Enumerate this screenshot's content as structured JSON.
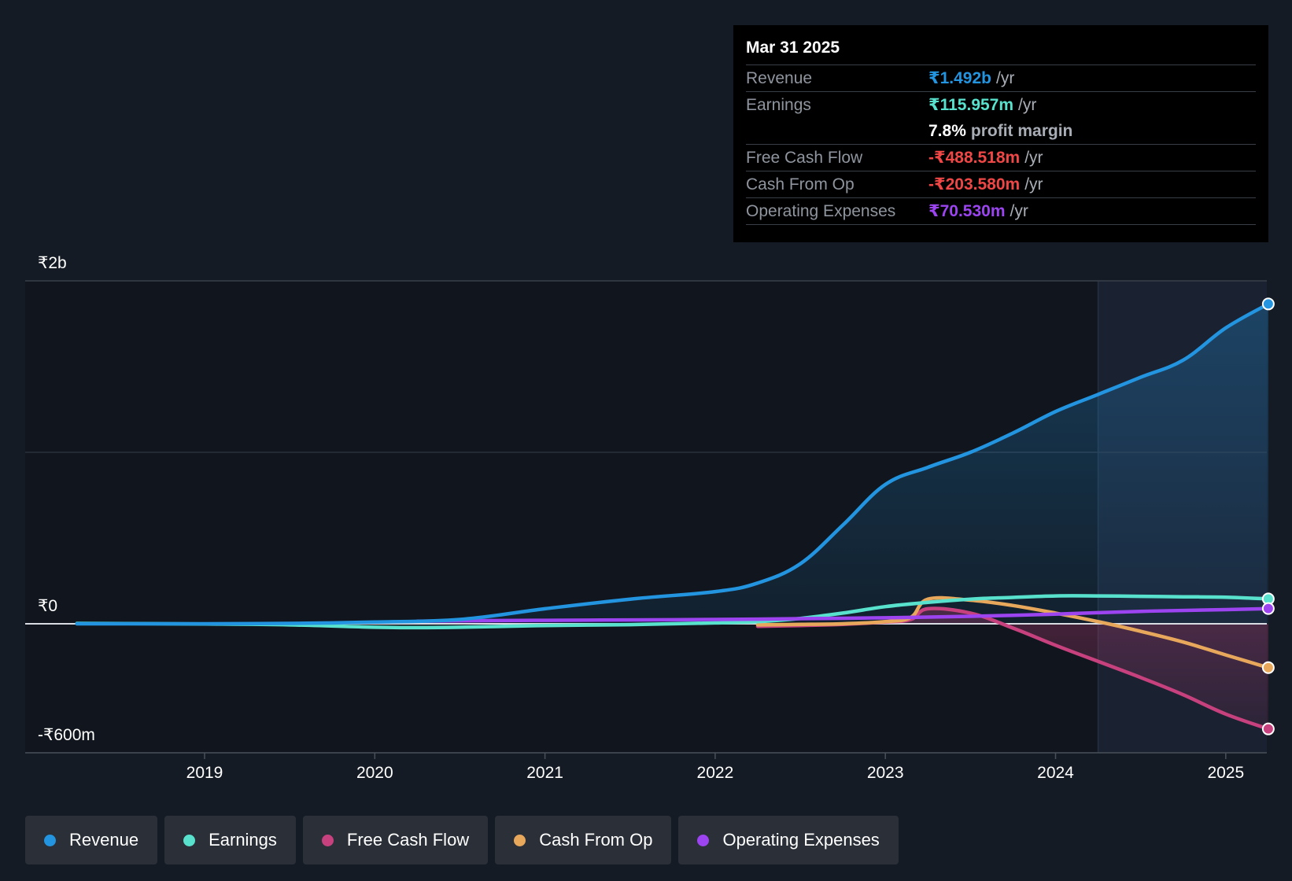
{
  "colors": {
    "revenue": "#2394df",
    "earnings": "#58e1cd",
    "fcf": "#c8417f",
    "cfo": "#e8a85c",
    "opex": "#9b44f0",
    "negative": "#ef4646",
    "background": "#151b24"
  },
  "tooltip": {
    "date": "Mar 31 2025",
    "rows": [
      {
        "label": "Revenue",
        "value": "₹1.492b",
        "unit": "/yr"
      },
      {
        "label": "Earnings",
        "value": "₹115.957m",
        "unit": "/yr"
      },
      {
        "label": "",
        "value": "7.8%",
        "unit": "profit margin"
      },
      {
        "label": "Free Cash Flow",
        "value": "-₹488.518m",
        "unit": "/yr"
      },
      {
        "label": "Cash From Op",
        "value": "-₹203.580m",
        "unit": "/yr"
      },
      {
        "label": "Operating Expenses",
        "value": "₹70.530m",
        "unit": "/yr"
      }
    ]
  },
  "legend": [
    {
      "label": "Revenue",
      "color": "#2394df"
    },
    {
      "label": "Earnings",
      "color": "#58e1cd"
    },
    {
      "label": "Free Cash Flow",
      "color": "#c8417f"
    },
    {
      "label": "Cash From Op",
      "color": "#e8a85c"
    },
    {
      "label": "Operating Expenses",
      "color": "#9b44f0"
    }
  ],
  "chart_data": {
    "type": "line",
    "title": "",
    "xlabel": "",
    "ylabel": "",
    "unit": "₹ millions",
    "xlim": [
      2018.0,
      2025.25
    ],
    "ylim": [
      -600,
      1600
    ],
    "x_ticks": [
      2019,
      2020,
      2021,
      2022,
      2023,
      2024,
      2025
    ],
    "x_tick_labels": [
      "2019",
      "2020",
      "2021",
      "2022",
      "2023",
      "2024",
      "2025"
    ],
    "y_labels": [
      {
        "value": 1600,
        "label": "₹2b"
      },
      {
        "value": 0,
        "label": "₹0"
      },
      {
        "value": -600,
        "label": "-₹600m"
      }
    ],
    "forecast_start": 2024.25,
    "series": [
      {
        "name": "Revenue",
        "key": "revenue",
        "x": [
          2018.25,
          2019.0,
          2019.5,
          2020.0,
          2020.5,
          2021.0,
          2021.5,
          2022.0,
          2022.25,
          2022.5,
          2022.75,
          2023.0,
          2023.25,
          2023.5,
          2023.75,
          2024.0,
          2024.25,
          2024.5,
          2024.75,
          2025.0,
          2025.25
        ],
        "y": [
          0,
          0,
          2,
          8,
          20,
          70,
          115,
          150,
          190,
          280,
          460,
          650,
          730,
          800,
          890,
          990,
          1070,
          1150,
          1230,
          1380,
          1492
        ]
      },
      {
        "name": "Earnings",
        "key": "earnings",
        "x": [
          2018.25,
          2019.0,
          2019.5,
          2020.0,
          2020.25,
          2020.5,
          2021.0,
          2021.5,
          2022.0,
          2022.25,
          2022.5,
          2022.75,
          2023.0,
          2023.25,
          2023.5,
          2023.75,
          2024.0,
          2024.25,
          2024.5,
          2024.75,
          2025.0,
          2025.25
        ],
        "y": [
          2,
          -1,
          -5,
          -16,
          -18,
          -16,
          -8,
          -4,
          4,
          10,
          25,
          50,
          80,
          100,
          115,
          123,
          130,
          130,
          128,
          126,
          124,
          116
        ]
      },
      {
        "name": "Free Cash Flow",
        "key": "fcf",
        "x": [
          2022.25,
          2022.5,
          2022.75,
          2023.0,
          2023.15,
          2023.25,
          2023.5,
          2023.75,
          2024.0,
          2024.25,
          2024.5,
          2024.75,
          2025.0,
          2025.25
        ],
        "y": [
          -12,
          -8,
          -3,
          8,
          20,
          70,
          50,
          -20,
          -100,
          -175,
          -250,
          -330,
          -420,
          -489
        ]
      },
      {
        "name": "Cash From Op",
        "key": "cfo",
        "x": [
          2022.25,
          2022.5,
          2022.75,
          2023.0,
          2023.15,
          2023.25,
          2023.5,
          2023.75,
          2024.0,
          2024.25,
          2024.5,
          2024.75,
          2025.0,
          2025.25
        ],
        "y": [
          -5,
          -3,
          0,
          10,
          30,
          115,
          110,
          85,
          50,
          10,
          -35,
          -85,
          -145,
          -204
        ]
      },
      {
        "name": "Operating Expenses",
        "key": "opex",
        "x": [
          2020.25,
          2020.5,
          2021.0,
          2021.5,
          2022.0,
          2022.5,
          2023.0,
          2023.5,
          2024.0,
          2024.5,
          2025.0,
          2025.25
        ],
        "y": [
          12,
          14,
          16,
          18,
          20,
          24,
          28,
          35,
          45,
          58,
          66,
          71
        ]
      }
    ]
  }
}
